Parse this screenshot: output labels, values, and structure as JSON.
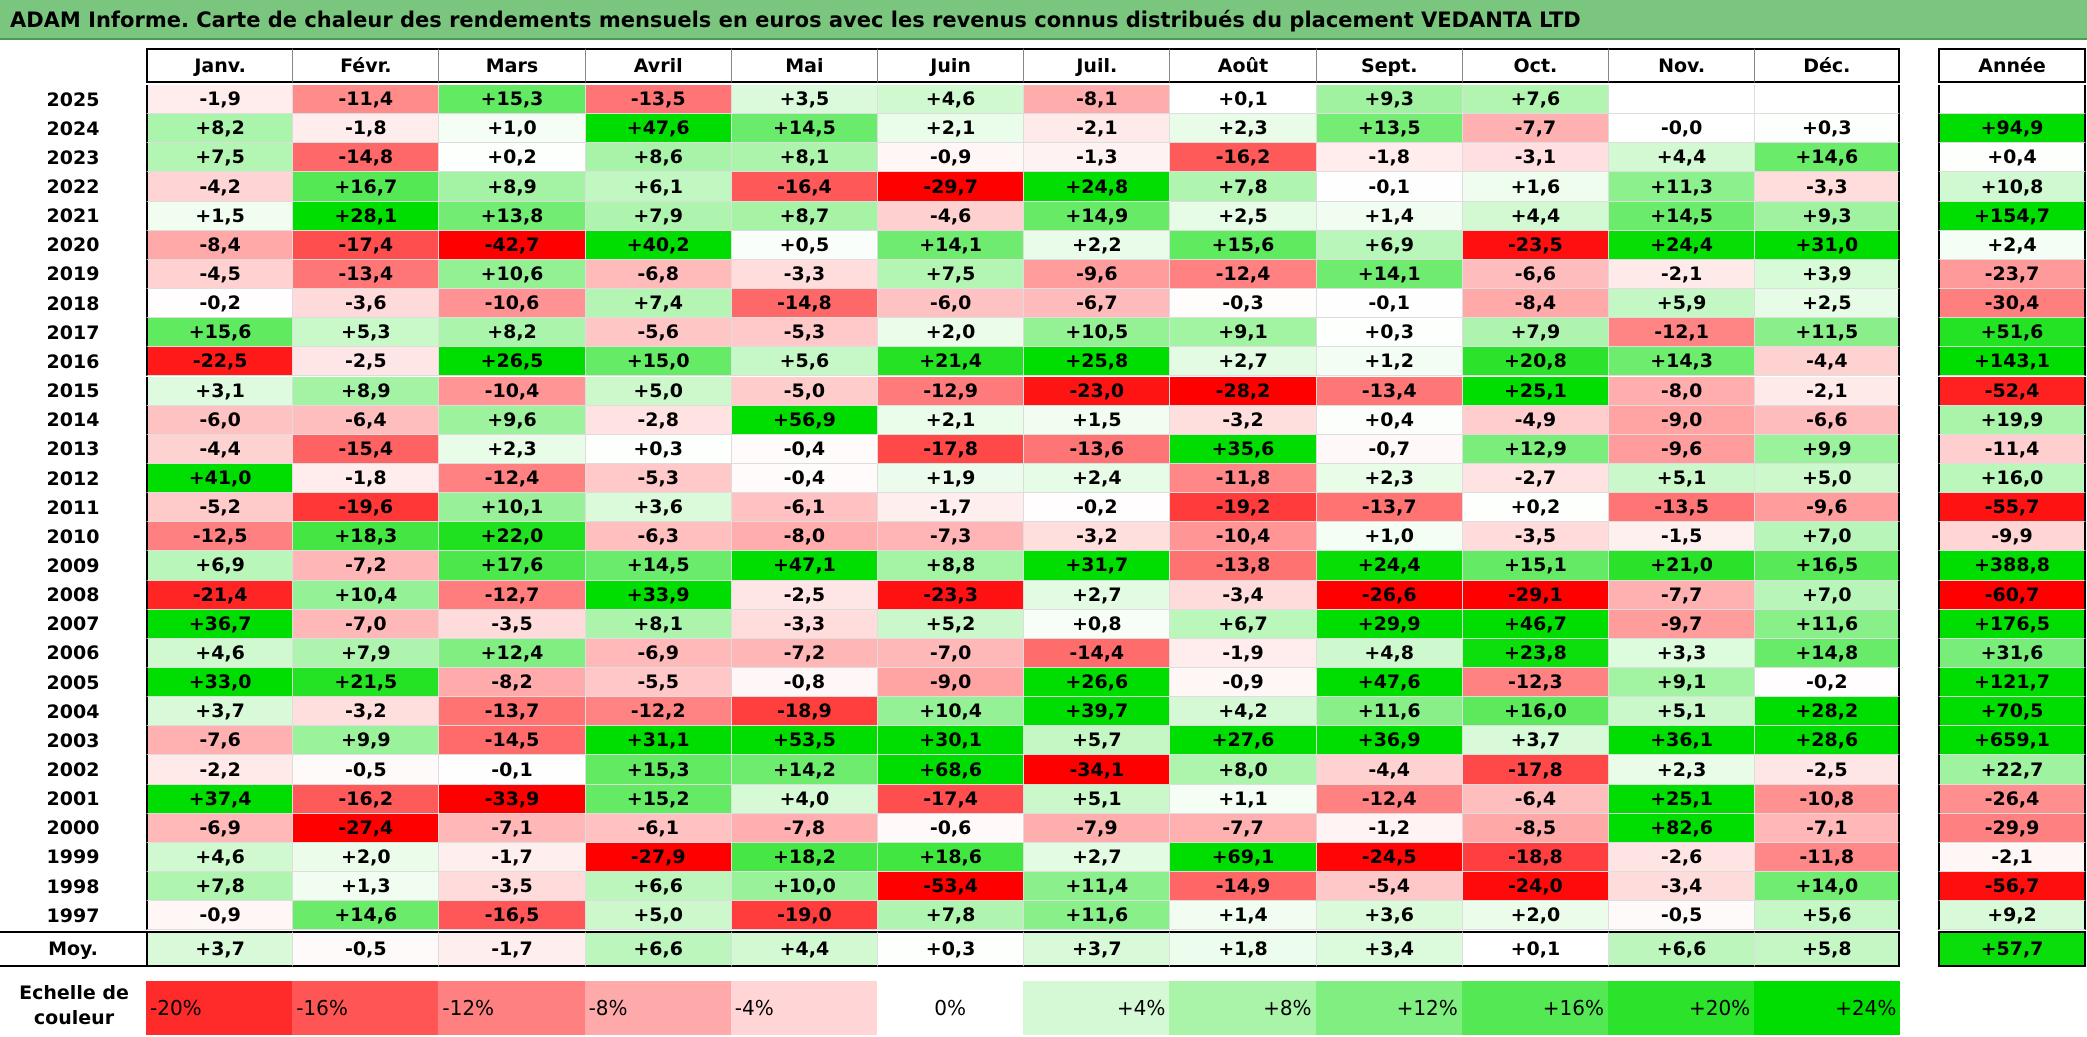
{
  "title": "ADAM Informe. Carte de chaleur des rendements mensuels en euros avec les revenus connus distribués du placement VEDANTA LTD",
  "colors": {
    "title_bg": "#7ac67e",
    "max_red": "#ff0000",
    "max_green": "#00dd00",
    "neutral": "#ffffff"
  },
  "chart_data": {
    "type": "heatmap",
    "title": "ADAM Informe. Carte de chaleur des rendements mensuels en euros avec les revenus connus distribués du placement VEDANTA LTD",
    "columns": [
      "Janv.",
      "Févr.",
      "Mars",
      "Avril",
      "Mai",
      "Juin",
      "Juil.",
      "Août",
      "Sept.",
      "Oct.",
      "Nov.",
      "Déc."
    ],
    "year_header": "Année",
    "rows": [
      {
        "year": "2025",
        "values": [
          "-1,9",
          "-11,4",
          "+15,3",
          "-13,5",
          "+3,5",
          "+4,6",
          "-8,1",
          "+0,1",
          "+9,3",
          "+7,6",
          "",
          ""
        ],
        "annual": ""
      },
      {
        "year": "2024",
        "values": [
          "+8,2",
          "-1,8",
          "+1,0",
          "+47,6",
          "+14,5",
          "+2,1",
          "-2,1",
          "+2,3",
          "+13,5",
          "-7,7",
          "-0,0",
          "+0,3"
        ],
        "annual": "+94,9"
      },
      {
        "year": "2023",
        "values": [
          "+7,5",
          "-14,8",
          "+0,2",
          "+8,6",
          "+8,1",
          "-0,9",
          "-1,3",
          "-16,2",
          "-1,8",
          "-3,1",
          "+4,4",
          "+14,6"
        ],
        "annual": "+0,4"
      },
      {
        "year": "2022",
        "values": [
          "-4,2",
          "+16,7",
          "+8,9",
          "+6,1",
          "-16,4",
          "-29,7",
          "+24,8",
          "+7,8",
          "-0,1",
          "+1,6",
          "+11,3",
          "-3,3"
        ],
        "annual": "+10,8"
      },
      {
        "year": "2021",
        "values": [
          "+1,5",
          "+28,1",
          "+13,8",
          "+7,9",
          "+8,7",
          "-4,6",
          "+14,9",
          "+2,5",
          "+1,4",
          "+4,4",
          "+14,5",
          "+9,3"
        ],
        "annual": "+154,7"
      },
      {
        "year": "2020",
        "values": [
          "-8,4",
          "-17,4",
          "-42,7",
          "+40,2",
          "+0,5",
          "+14,1",
          "+2,2",
          "+15,6",
          "+6,9",
          "-23,5",
          "+24,4",
          "+31,0"
        ],
        "annual": "+2,4"
      },
      {
        "year": "2019",
        "values": [
          "-4,5",
          "-13,4",
          "+10,6",
          "-6,8",
          "-3,3",
          "+7,5",
          "-9,6",
          "-12,4",
          "+14,1",
          "-6,6",
          "-2,1",
          "+3,9"
        ],
        "annual": "-23,7"
      },
      {
        "year": "2018",
        "values": [
          "-0,2",
          "-3,6",
          "-10,6",
          "+7,4",
          "-14,8",
          "-6,0",
          "-6,7",
          "-0,3",
          "-0,1",
          "-8,4",
          "+5,9",
          "+2,5"
        ],
        "annual": "-30,4"
      },
      {
        "year": "2017",
        "values": [
          "+15,6",
          "+5,3",
          "+8,2",
          "-5,6",
          "-5,3",
          "+2,0",
          "+10,5",
          "+9,1",
          "+0,3",
          "+7,9",
          "-12,1",
          "+11,5"
        ],
        "annual": "+51,6"
      },
      {
        "year": "2016",
        "values": [
          "-22,5",
          "-2,5",
          "+26,5",
          "+15,0",
          "+5,6",
          "+21,4",
          "+25,8",
          "+2,7",
          "+1,2",
          "+20,8",
          "+14,3",
          "-4,4"
        ],
        "annual": "+143,1"
      },
      {
        "year": "2015",
        "values": [
          "+3,1",
          "+8,9",
          "-10,4",
          "+5,0",
          "-5,0",
          "-12,9",
          "-23,0",
          "-28,2",
          "-13,4",
          "+25,1",
          "-8,0",
          "-2,1"
        ],
        "annual": "-52,4"
      },
      {
        "year": "2014",
        "values": [
          "-6,0",
          "-6,4",
          "+9,6",
          "-2,8",
          "+56,9",
          "+2,1",
          "+1,5",
          "-3,2",
          "+0,4",
          "-4,9",
          "-9,0",
          "-6,6"
        ],
        "annual": "+19,9"
      },
      {
        "year": "2013",
        "values": [
          "-4,4",
          "-15,4",
          "+2,3",
          "+0,3",
          "-0,4",
          "-17,8",
          "-13,6",
          "+35,6",
          "-0,7",
          "+12,9",
          "-9,6",
          "+9,9"
        ],
        "annual": "-11,4"
      },
      {
        "year": "2012",
        "values": [
          "+41,0",
          "-1,8",
          "-12,4",
          "-5,3",
          "-0,4",
          "+1,9",
          "+2,4",
          "-11,8",
          "+2,3",
          "-2,7",
          "+5,1",
          "+5,0"
        ],
        "annual": "+16,0"
      },
      {
        "year": "2011",
        "values": [
          "-5,2",
          "-19,6",
          "+10,1",
          "+3,6",
          "-6,1",
          "-1,7",
          "-0,2",
          "-19,2",
          "-13,7",
          "+0,2",
          "-13,5",
          "-9,6"
        ],
        "annual": "-55,7"
      },
      {
        "year": "2010",
        "values": [
          "-12,5",
          "+18,3",
          "+22,0",
          "-6,3",
          "-8,0",
          "-7,3",
          "-3,2",
          "-10,4",
          "+1,0",
          "-3,5",
          "-1,5",
          "+7,0"
        ],
        "annual": "-9,9"
      },
      {
        "year": "2009",
        "values": [
          "+6,9",
          "-7,2",
          "+17,6",
          "+14,5",
          "+47,1",
          "+8,8",
          "+31,7",
          "-13,8",
          "+24,4",
          "+15,1",
          "+21,0",
          "+16,5"
        ],
        "annual": "+388,8"
      },
      {
        "year": "2008",
        "values": [
          "-21,4",
          "+10,4",
          "-12,7",
          "+33,9",
          "-2,5",
          "-23,3",
          "+2,7",
          "-3,4",
          "-26,6",
          "-29,1",
          "-7,7",
          "+7,0"
        ],
        "annual": "-60,7"
      },
      {
        "year": "2007",
        "values": [
          "+36,7",
          "-7,0",
          "-3,5",
          "+8,1",
          "-3,3",
          "+5,2",
          "+0,8",
          "+6,7",
          "+29,9",
          "+46,7",
          "-9,7",
          "+11,6"
        ],
        "annual": "+176,5"
      },
      {
        "year": "2006",
        "values": [
          "+4,6",
          "+7,9",
          "+12,4",
          "-6,9",
          "-7,2",
          "-7,0",
          "-14,4",
          "-1,9",
          "+4,8",
          "+23,8",
          "+3,3",
          "+14,8"
        ],
        "annual": "+31,6"
      },
      {
        "year": "2005",
        "values": [
          "+33,0",
          "+21,5",
          "-8,2",
          "-5,5",
          "-0,8",
          "-9,0",
          "+26,6",
          "-0,9",
          "+47,6",
          "-12,3",
          "+9,1",
          "-0,2"
        ],
        "annual": "+121,7"
      },
      {
        "year": "2004",
        "values": [
          "+3,7",
          "-3,2",
          "-13,7",
          "-12,2",
          "-18,9",
          "+10,4",
          "+39,7",
          "+4,2",
          "+11,6",
          "+16,0",
          "+5,1",
          "+28,2"
        ],
        "annual": "+70,5"
      },
      {
        "year": "2003",
        "values": [
          "-7,6",
          "+9,9",
          "-14,5",
          "+31,1",
          "+53,5",
          "+30,1",
          "+5,7",
          "+27,6",
          "+36,9",
          "+3,7",
          "+36,1",
          "+28,6"
        ],
        "annual": "+659,1"
      },
      {
        "year": "2002",
        "values": [
          "-2,2",
          "-0,5",
          "-0,1",
          "+15,3",
          "+14,2",
          "+68,6",
          "-34,1",
          "+8,0",
          "-4,4",
          "-17,8",
          "+2,3",
          "-2,5"
        ],
        "annual": "+22,7"
      },
      {
        "year": "2001",
        "values": [
          "+37,4",
          "-16,2",
          "-33,9",
          "+15,2",
          "+4,0",
          "-17,4",
          "+5,1",
          "+1,1",
          "-12,4",
          "-6,4",
          "+25,1",
          "-10,8"
        ],
        "annual": "-26,4"
      },
      {
        "year": "2000",
        "values": [
          "-6,9",
          "-27,4",
          "-7,1",
          "-6,1",
          "-7,8",
          "-0,6",
          "-7,9",
          "-7,7",
          "-1,2",
          "-8,5",
          "+82,6",
          "-7,1"
        ],
        "annual": "-29,9"
      },
      {
        "year": "1999",
        "values": [
          "+4,6",
          "+2,0",
          "-1,7",
          "-27,9",
          "+18,2",
          "+18,6",
          "+2,7",
          "+69,1",
          "-24,5",
          "-18,8",
          "-2,6",
          "-11,8"
        ],
        "annual": "-2,1"
      },
      {
        "year": "1998",
        "values": [
          "+7,8",
          "+1,3",
          "-3,5",
          "+6,6",
          "+10,0",
          "-53,4",
          "+11,4",
          "-14,9",
          "-5,4",
          "-24,0",
          "-3,4",
          "+14,0"
        ],
        "annual": "-56,7"
      },
      {
        "year": "1997",
        "values": [
          "-0,9",
          "+14,6",
          "-16,5",
          "+5,0",
          "-19,0",
          "+7,8",
          "+11,6",
          "+1,4",
          "+3,6",
          "+2,0",
          "-0,5",
          "+5,6"
        ],
        "annual": "+9,2"
      }
    ],
    "average": {
      "label": "Moy.",
      "values": [
        "+3,7",
        "-0,5",
        "-1,7",
        "+6,6",
        "+4,4",
        "+0,3",
        "+3,7",
        "+1,8",
        "+3,4",
        "+0,1",
        "+6,6",
        "+5,8"
      ],
      "annual": "+57,7"
    },
    "scale": {
      "label": "Echelle de couleur",
      "steps": [
        "-20%",
        "-16%",
        "-12%",
        "-8%",
        "-4%",
        "0%",
        "+4%",
        "+8%",
        "+12%",
        "+16%",
        "+20%",
        "+24%"
      ]
    }
  }
}
